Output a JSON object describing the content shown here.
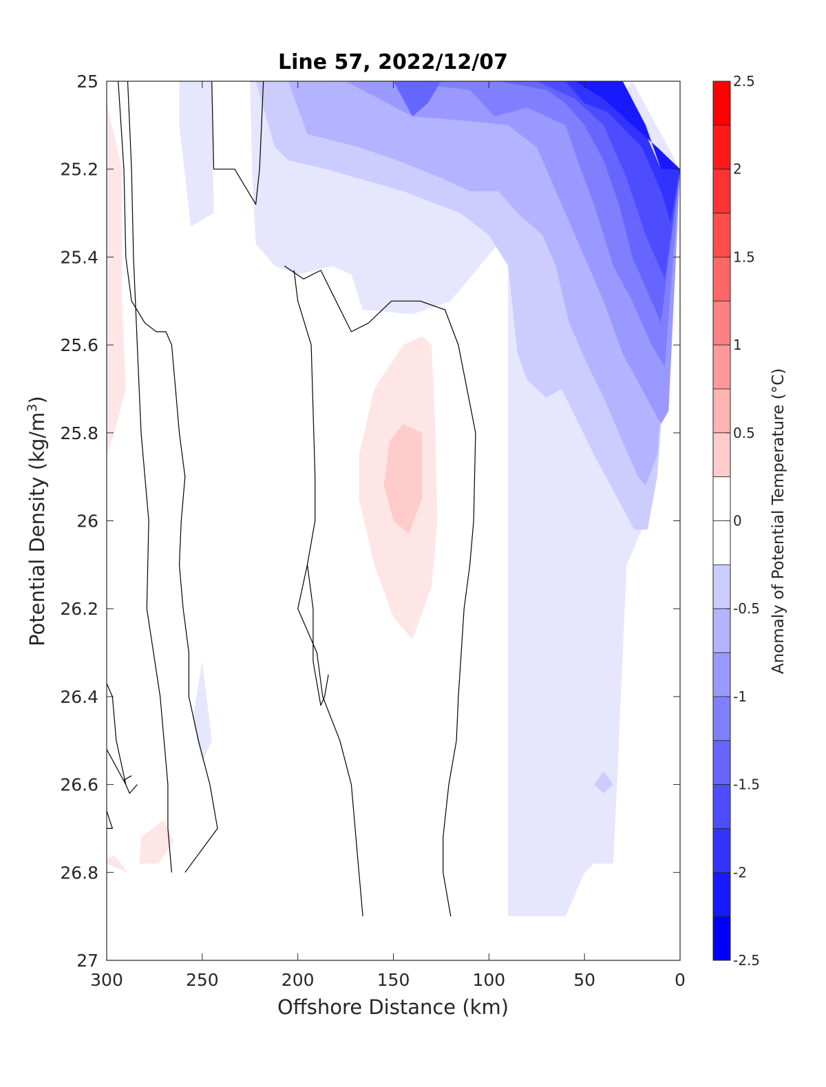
{
  "chart_data": {
    "type": "heatmap",
    "title": "Line 57, 2022/12/07",
    "xlabel": "Offshore Distance (km)",
    "ylabel_main": "Potential Density (kg/m",
    "ylabel_sup": "3",
    "ylabel_close": ")",
    "xlim": [
      300,
      0
    ],
    "ylim": [
      25,
      27
    ],
    "x_ticks": [
      300,
      250,
      200,
      150,
      100,
      50,
      0
    ],
    "y_ticks": [
      25,
      25.2,
      25.4,
      25.6,
      25.8,
      26,
      26.2,
      26.4,
      26.6,
      26.8,
      27
    ],
    "y_tick_labels": [
      "25",
      "25.2",
      "25.4",
      "25.6",
      "25.8",
      "26",
      "26.2",
      "26.4",
      "26.6",
      "26.8",
      "27"
    ],
    "colorbar": {
      "label": "Anomaly of Potential Temperature (°C)",
      "range": [
        -2.5,
        2.5
      ],
      "step": 0.25,
      "tick_values": [
        2.5,
        2,
        1.5,
        1,
        0.5,
        0,
        -0.5,
        -1,
        -1.5,
        -2,
        -2.5
      ],
      "tick_labels": [
        "2.5",
        "2",
        "1.5",
        "1",
        "0.5",
        "0",
        "-0.5",
        "-1",
        "-1.5",
        "-2",
        "-2.5"
      ]
    },
    "colors": {
      "positive": "#ff0000",
      "negative": "#0000ff",
      "neutral": "#ffffff",
      "contour": "#000000"
    },
    "filled_regions": [
      {
        "level": -0.25,
        "points": [
          [
            225,
            25
          ],
          [
            90,
            25
          ],
          [
            90,
            26.9
          ],
          [
            60,
            26.9
          ],
          [
            50,
            26.8
          ],
          [
            45,
            26.78
          ],
          [
            35,
            26.78
          ],
          [
            33,
            26.6
          ],
          [
            30,
            26.3
          ],
          [
            28,
            26.1
          ],
          [
            18,
            26
          ],
          [
            12,
            25.4
          ],
          [
            10,
            25.2
          ],
          [
            0,
            25.2
          ],
          [
            0,
            25.2
          ],
          [
            25,
            25
          ],
          [
            120,
            25.5
          ],
          [
            140,
            25.53
          ],
          [
            166,
            25.52
          ],
          [
            172,
            25.44
          ],
          [
            182,
            25.42
          ],
          [
            200,
            25.44
          ],
          [
            212,
            25.42
          ],
          [
            222,
            25.37
          ],
          [
            224,
            25.2
          ]
        ]
      },
      {
        "level": -0.25,
        "points": [
          [
            262,
            25
          ],
          [
            245,
            25
          ],
          [
            244,
            25.3
          ],
          [
            256,
            25.33
          ],
          [
            262,
            25.1
          ]
        ]
      },
      {
        "level": -0.25,
        "points": [
          [
            245,
            26.5
          ],
          [
            250,
            26.32
          ],
          [
            255,
            26.45
          ],
          [
            250,
            26.55
          ]
        ]
      },
      {
        "level": -0.5,
        "points": [
          [
            222,
            25
          ],
          [
            30,
            25
          ],
          [
            10,
            25.2
          ],
          [
            0,
            25.2
          ],
          [
            12,
            25.9
          ],
          [
            17,
            26.02
          ],
          [
            24,
            26.02
          ],
          [
            45,
            25.85
          ],
          [
            62,
            25.7
          ],
          [
            70,
            25.72
          ],
          [
            80,
            25.68
          ],
          [
            85,
            25.62
          ],
          [
            90,
            25.42
          ],
          [
            100,
            25.35
          ],
          [
            115,
            25.3
          ],
          [
            145,
            25.25
          ],
          [
            185,
            25.2
          ],
          [
            205,
            25.18
          ],
          [
            212,
            25.15
          ]
        ]
      },
      {
        "level": -0.75,
        "points": [
          [
            205,
            25
          ],
          [
            30,
            25
          ],
          [
            10,
            25.2
          ],
          [
            0,
            25.2
          ],
          [
            12,
            25.85
          ],
          [
            18,
            25.92
          ],
          [
            22,
            25.9
          ],
          [
            30,
            25.82
          ],
          [
            40,
            25.72
          ],
          [
            50,
            25.63
          ],
          [
            58,
            25.55
          ],
          [
            65,
            25.42
          ],
          [
            72,
            25.35
          ],
          [
            85,
            25.3
          ],
          [
            95,
            25.25
          ],
          [
            110,
            25.25
          ],
          [
            125,
            25.22
          ],
          [
            148,
            25.18
          ],
          [
            168,
            25.15
          ],
          [
            195,
            25.12
          ]
        ]
      },
      {
        "level": -1.0,
        "points": [
          [
            175,
            25
          ],
          [
            30,
            25
          ],
          [
            10,
            25.2
          ],
          [
            0,
            25.2
          ],
          [
            6,
            25.75
          ],
          [
            10,
            25.78
          ],
          [
            20,
            25.7
          ],
          [
            30,
            25.62
          ],
          [
            40,
            25.5
          ],
          [
            50,
            25.4
          ],
          [
            58,
            25.32
          ],
          [
            65,
            25.25
          ],
          [
            75,
            25.15
          ],
          [
            90,
            25.1
          ],
          [
            112,
            25.09
          ],
          [
            140,
            25.08
          ]
        ]
      },
      {
        "level": -1.25,
        "points": [
          [
            150,
            25
          ],
          [
            30,
            25
          ],
          [
            10,
            25.2
          ],
          [
            0,
            25.2
          ],
          [
            8,
            25.65
          ],
          [
            15,
            25.6
          ],
          [
            25,
            25.5
          ],
          [
            35,
            25.42
          ],
          [
            45,
            25.28
          ],
          [
            52,
            25.2
          ],
          [
            60,
            25.1
          ],
          [
            80,
            25.06
          ],
          [
            97,
            25.08
          ],
          [
            110,
            25.02
          ]
        ]
      },
      {
        "level": -1.5,
        "points": [
          [
            95,
            25
          ],
          [
            30,
            25
          ],
          [
            10,
            25.2
          ],
          [
            0,
            25.2
          ],
          [
            10,
            25.55
          ],
          [
            17,
            25.48
          ],
          [
            25,
            25.4
          ],
          [
            32,
            25.28
          ],
          [
            40,
            25.18
          ],
          [
            50,
            25.1
          ],
          [
            60,
            25.05
          ],
          [
            70,
            25.02
          ]
        ]
      },
      {
        "level": -1.5,
        "points": [
          [
            150,
            25
          ],
          [
            125,
            25
          ],
          [
            132,
            25.05
          ],
          [
            140,
            25.08
          ]
        ]
      },
      {
        "level": -1.75,
        "points": [
          [
            75,
            25
          ],
          [
            30,
            25
          ],
          [
            10,
            25.2
          ],
          [
            0,
            25.2
          ],
          [
            8,
            25.45
          ],
          [
            18,
            25.35
          ],
          [
            28,
            25.22
          ],
          [
            40,
            25.1
          ],
          [
            55,
            25.04
          ]
        ]
      },
      {
        "level": -2.0,
        "points": [
          [
            60,
            25
          ],
          [
            30,
            25
          ],
          [
            10,
            25.2
          ],
          [
            0,
            25.2
          ],
          [
            5,
            25.32
          ],
          [
            10,
            25.25
          ],
          [
            20,
            25.15
          ],
          [
            38,
            25.07
          ],
          [
            50,
            25.05
          ]
        ]
      },
      {
        "level": -2.25,
        "points": [
          [
            55,
            25
          ],
          [
            30,
            25
          ],
          [
            18,
            25.1
          ],
          [
            10,
            25.2
          ],
          [
            0,
            25.2
          ],
          [
            12,
            25.15
          ],
          [
            25,
            25.1
          ],
          [
            40,
            25.04
          ]
        ]
      },
      {
        "level": -0.5,
        "points": [
          [
            40,
            26.57
          ],
          [
            45,
            26.6
          ],
          [
            40,
            26.62
          ],
          [
            35,
            26.6
          ]
        ]
      },
      {
        "level": 0.25,
        "points": [
          [
            135,
            25.58
          ],
          [
            145,
            25.6
          ],
          [
            160,
            25.7
          ],
          [
            168,
            25.85
          ],
          [
            168,
            25.95
          ],
          [
            160,
            26.1
          ],
          [
            150,
            26.22
          ],
          [
            140,
            26.27
          ],
          [
            130,
            26.15
          ],
          [
            127,
            26
          ],
          [
            128,
            25.8
          ],
          [
            130,
            25.6
          ]
        ]
      },
      {
        "level": 0.5,
        "points": [
          [
            145,
            25.78
          ],
          [
            152,
            25.82
          ],
          [
            155,
            25.92
          ],
          [
            150,
            26
          ],
          [
            142,
            26.03
          ],
          [
            135,
            25.95
          ],
          [
            135,
            25.8
          ]
        ]
      },
      {
        "level": 0.25,
        "points": [
          [
            300,
            25.05
          ],
          [
            292,
            25.2
          ],
          [
            292,
            25.5
          ],
          [
            290,
            25.7
          ],
          [
            296,
            25.8
          ],
          [
            300,
            25.85
          ]
        ]
      },
      {
        "level": 0.25,
        "points": [
          [
            282,
            26.72
          ],
          [
            270,
            26.68
          ],
          [
            265,
            26.73
          ],
          [
            273,
            26.78
          ],
          [
            283,
            26.78
          ]
        ]
      },
      {
        "level": 0.25,
        "points": [
          [
            300,
            26.78
          ],
          [
            289,
            26.8
          ],
          [
            296,
            26.76
          ],
          [
            300,
            26.77
          ]
        ]
      }
    ],
    "contour_lines": [
      [
        [
          294,
          25
        ],
        [
          291,
          25.2
        ],
        [
          290,
          25.4
        ],
        [
          287,
          25.5
        ],
        [
          280,
          25.55
        ],
        [
          274,
          25.57
        ],
        [
          269,
          25.57
        ],
        [
          266,
          25.6
        ],
        [
          264,
          25.7
        ],
        [
          262,
          25.8
        ],
        [
          259,
          25.9
        ],
        [
          261,
          26.0
        ],
        [
          262,
          26.1
        ],
        [
          260,
          26.2
        ],
        [
          257,
          26.3
        ],
        [
          257,
          26.4
        ],
        [
          252,
          26.5
        ],
        [
          246,
          26.6
        ],
        [
          242,
          26.7
        ],
        [
          259,
          26.8
        ]
      ],
      [
        [
          289,
          25
        ],
        [
          287,
          25.2
        ],
        [
          286,
          25.4
        ],
        [
          285,
          25.5
        ],
        [
          284,
          25.6
        ],
        [
          282,
          25.8
        ],
        [
          278,
          26.0
        ],
        [
          279,
          26.2
        ],
        [
          272,
          26.4
        ],
        [
          268,
          26.6
        ],
        [
          268,
          26.7
        ],
        [
          266,
          26.8
        ]
      ],
      [
        [
          245,
          25
        ],
        [
          244,
          25.2
        ],
        [
          233,
          25.2
        ],
        [
          222,
          25.28
        ],
        [
          220,
          25.2
        ],
        [
          218,
          25
        ],
        [
          225,
          25
        ]
      ],
      [
        [
          207,
          25.42
        ],
        [
          197,
          25.45
        ],
        [
          188,
          25.43
        ],
        [
          180,
          25.5
        ],
        [
          172,
          25.57
        ],
        [
          163,
          25.55
        ],
        [
          151,
          25.5
        ],
        [
          136,
          25.5
        ],
        [
          123,
          25.52
        ],
        [
          116,
          25.6
        ],
        [
          107,
          25.8
        ],
        [
          108,
          26.0
        ],
        [
          110,
          26.1
        ],
        [
          113,
          26.2
        ],
        [
          116,
          26.4
        ],
        [
          117,
          26.5
        ],
        [
          121,
          26.6
        ],
        [
          124,
          26.72
        ],
        [
          124,
          26.8
        ],
        [
          120,
          26.9
        ]
      ],
      [
        [
          202,
          25.43
        ],
        [
          200,
          25.5
        ],
        [
          193,
          25.6
        ],
        [
          191,
          25.9
        ],
        [
          191,
          26.0
        ],
        [
          195,
          26.1
        ],
        [
          200,
          26.2
        ],
        [
          190,
          26.3
        ],
        [
          187,
          26.4
        ],
        [
          178,
          26.5
        ],
        [
          172,
          26.6
        ],
        [
          169,
          26.75
        ],
        [
          166,
          26.9
        ]
      ],
      [
        [
          184,
          26.35
        ],
        [
          186,
          26.4
        ],
        [
          188,
          26.42
        ],
        [
          192,
          26.32
        ],
        [
          192,
          26.2
        ],
        [
          195,
          26.1
        ]
      ],
      [
        [
          300,
          26.37
        ],
        [
          297,
          26.4
        ],
        [
          295,
          26.5
        ],
        [
          290,
          26.6
        ],
        [
          300,
          26.52
        ]
      ],
      [
        [
          284,
          26.6
        ],
        [
          288,
          26.62
        ],
        [
          291,
          26.59
        ],
        [
          287,
          26.58
        ]
      ],
      [
        [
          300,
          26.66
        ],
        [
          297,
          26.7
        ],
        [
          300,
          26.7
        ]
      ]
    ]
  }
}
